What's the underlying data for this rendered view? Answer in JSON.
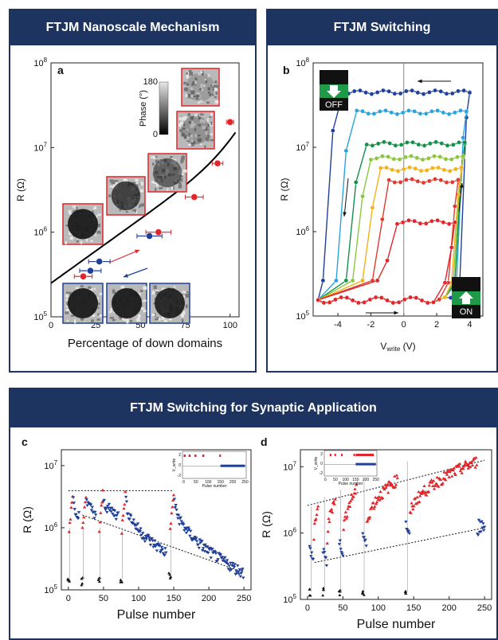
{
  "colors": {
    "header_bg": "#1d3461",
    "red": "#e0262b",
    "blue": "#1f3f99",
    "black": "#111111",
    "loop": [
      "#1f3f99",
      "#2aa3dd",
      "#14904b",
      "#8cc63f",
      "#f2b21b",
      "#e03a2e",
      "#e0262b"
    ]
  },
  "headers": {
    "top_left": "FTJM Nanoscale Mechanism",
    "top_right": "FTJM Switching",
    "bottom": "FTJM Switching for Synaptic Application"
  },
  "chart_data": [
    {
      "id": "a",
      "type": "scatter",
      "panel_letter": "a",
      "xlabel": "Percentage of down domains",
      "ylabel": "R (Ω)",
      "xlim": [
        0,
        105
      ],
      "ylim": [
        100000.0,
        100000000.0
      ],
      "yscale": "log",
      "xticks": [
        "0",
        "25",
        "50",
        "75",
        "100"
      ],
      "yticks": [
        "10^5",
        "10^6",
        "10^7",
        "10^8"
      ],
      "colorbar": {
        "label": "Phase (°)",
        "max": "180",
        "min": "0"
      },
      "series": [
        {
          "color": "red",
          "points": [
            [
              18,
              300000.0
            ],
            [
              60,
              1000000.0
            ],
            [
              80,
              2600000.0
            ],
            [
              93,
              6500000.0
            ],
            [
              100,
              20000000.0
            ]
          ],
          "xerr": [
            5,
            7,
            5,
            3,
            2
          ]
        },
        {
          "color": "blue",
          "points": [
            [
              22,
              350000.0
            ],
            [
              27,
              450000.0
            ],
            [
              55,
              900000.0
            ]
          ],
          "xerr": [
            6,
            6,
            7
          ]
        }
      ]
    },
    {
      "id": "b",
      "type": "line",
      "panel_letter": "b",
      "xlabel_main": "V",
      "xlabel_sub": "write",
      "xlabel_unit": " (V)",
      "ylabel": "R (Ω)",
      "xlim": [
        -5.5,
        4.8
      ],
      "ylim": [
        100000.0,
        100000000.0
      ],
      "yscale": "log",
      "xticks": [
        "-4",
        "-2",
        "0",
        "2",
        "4"
      ],
      "yticks": [
        "10^5",
        "10^6",
        "10^7",
        "10^8"
      ],
      "insets": {
        "off_label": "OFF",
        "on_label": "ON"
      },
      "loops": [
        {
          "vneg": -4.0,
          "vpos": 3.4,
          "rhigh": 45000000.0
        },
        {
          "vneg": -3.2,
          "vpos": 3.2,
          "rhigh": 26000000.0
        },
        {
          "vneg": -2.6,
          "vpos": 3.1,
          "rhigh": 11000000.0
        },
        {
          "vneg": -2.2,
          "vpos": 3.0,
          "rhigh": 7500000.0
        },
        {
          "vneg": -1.6,
          "vpos": 2.9,
          "rhigh": 5500000.0
        },
        {
          "vneg": -1.0,
          "vpos": 2.7,
          "rhigh": 4000000.0
        },
        {
          "vneg": -0.7,
          "vpos": 2.5,
          "rhigh": 1300000.0
        }
      ]
    },
    {
      "id": "c",
      "type": "scatter",
      "panel_letter": "c",
      "xlabel": "Pulse number",
      "ylabel": "R (Ω)",
      "xlim": [
        -10,
        260
      ],
      "ylim": [
        100000.0,
        18000000.0
      ],
      "yscale": "log",
      "xticks": [
        "0",
        "50",
        "100",
        "150",
        "200",
        "250"
      ],
      "yticks": [
        "10^5",
        "10^6",
        "10^7"
      ],
      "inset": {
        "ylabel": "V_write",
        "xlabel": "Pulse number",
        "xticks": [
          "0",
          "50",
          "100",
          "150",
          "200",
          "250"
        ],
        "yticks": [
          "2",
          "0",
          "-2"
        ]
      },
      "segments": [
        {
          "start": 1,
          "on": 6,
          "decay_to": 1600000.0,
          "low": 140000.0
        },
        {
          "start": 20,
          "on": 6,
          "decay_to": 1700000.0,
          "low": 140000.0
        },
        {
          "start": 44,
          "on": 6,
          "decay_to": 1600000.0,
          "low": 140000.0
        },
        {
          "start": 76,
          "on": 6,
          "decay_to": 400000.0,
          "low": 150000.0
        },
        {
          "start": 145,
          "on": 6,
          "decay_to": 190000.0,
          "low": 170000.0
        }
      ],
      "segment_ends": [
        16,
        40,
        72,
        140,
        250
      ]
    },
    {
      "id": "d",
      "type": "scatter",
      "panel_letter": "d",
      "xlabel": "Pulse number",
      "ylabel": "R (Ω)",
      "xlim": [
        -10,
        260
      ],
      "ylim": [
        100000.0,
        18000000.0
      ],
      "yscale": "log",
      "xticks": [
        "0",
        "50",
        "100",
        "150",
        "200",
        "250"
      ],
      "yticks": [
        "10^5",
        "10^6",
        "10^7"
      ],
      "inset": {
        "ylabel": "V_write",
        "xlabel": "Pulse number",
        "xticks": [
          "0",
          "50",
          "100",
          "150",
          "200",
          "250"
        ],
        "yticks": [
          "2",
          "0",
          "-2"
        ]
      },
      "segments": [
        {
          "start": 3,
          "off": 6,
          "low_start": 400000.0,
          "high_end": 2500000.0
        },
        {
          "start": 22,
          "off": 6,
          "low_start": 360000.0,
          "high_end": 3500000.0
        },
        {
          "start": 45,
          "off": 6,
          "low_start": 500000.0,
          "high_end": 4500000.0
        },
        {
          "start": 78,
          "off": 6,
          "low_start": 650000.0,
          "high_end": 6500000.0
        },
        {
          "start": 139,
          "off": 6,
          "low_start": 900000.0,
          "high_end": 12000000.0
        }
      ],
      "segment_ends": [
        16,
        40,
        70,
        128,
        240
      ],
      "tail": {
        "from": 240,
        "to": 250,
        "high": 1300000.0
      }
    }
  ]
}
